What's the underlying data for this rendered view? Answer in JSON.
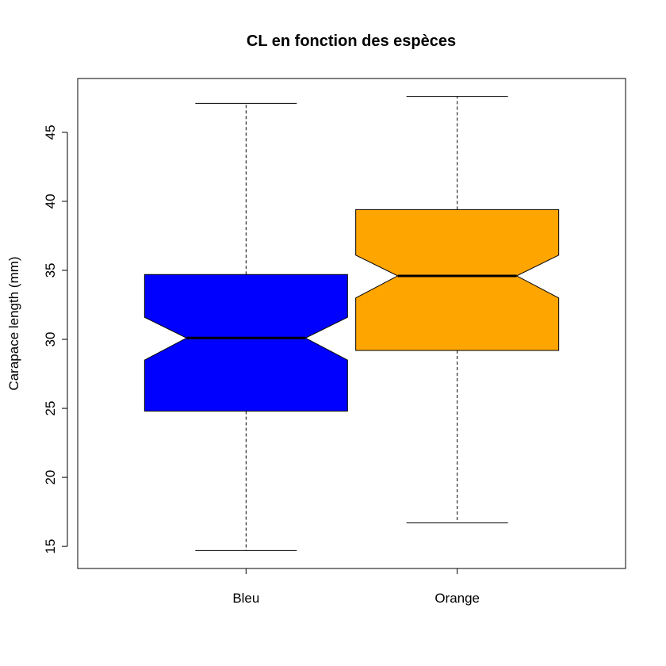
{
  "chart_data": {
    "type": "boxplot",
    "title": "CL en fonction des espèces",
    "xlabel": "",
    "ylabel": "Carapace length (mm)",
    "ylim": [
      13.4,
      48.9
    ],
    "yticks": [
      15,
      20,
      25,
      30,
      35,
      40,
      45
    ],
    "notched": true,
    "grid": false,
    "categories": [
      "Bleu",
      "Orange"
    ],
    "series": [
      {
        "category": "Bleu",
        "color": "#0000ff",
        "min": 14.7,
        "q1": 24.8,
        "median": 30.1,
        "q3": 34.7,
        "max": 47.1,
        "notch_low": 28.5,
        "notch_high": 31.6
      },
      {
        "category": "Orange",
        "color": "#ffa500",
        "min": 16.7,
        "q1": 29.2,
        "median": 34.6,
        "q3": 39.4,
        "max": 47.6,
        "notch_low": 33.0,
        "notch_high": 36.1
      }
    ]
  }
}
